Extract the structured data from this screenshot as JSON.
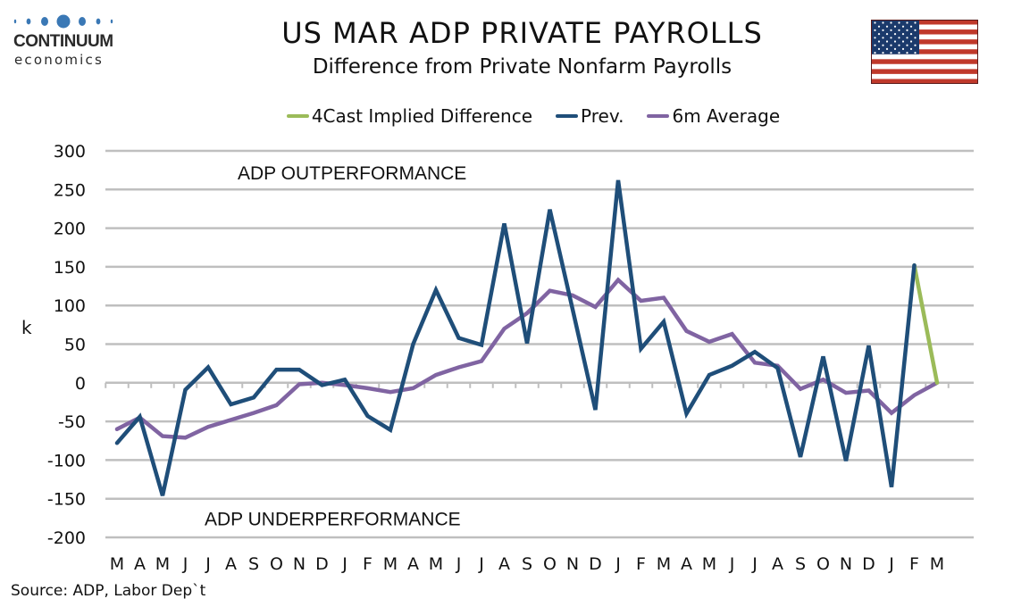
{
  "header": {
    "logo_name": "CONTINUUM",
    "logo_sub": "economics",
    "title": "US MAR ADP PRIVATE PAYROLLS",
    "subtitle": "Difference from Private Nonfarm Payrolls",
    "flag_icon": "us-flag-icon"
  },
  "colors": {
    "forecast": "#9bbb59",
    "prev": "#1f4e79",
    "avg": "#8064a2",
    "grid": "#bfbfbf",
    "logo_blue": "#3a78b5",
    "flag_red": "#c0392b",
    "flag_blue": "#1b3a6b"
  },
  "footer": {
    "source": "Source: ADP, Labor Dep`t"
  },
  "chart_data": {
    "type": "line",
    "title": "US MAR ADP PRIVATE PAYROLLS",
    "subtitle": "Difference from Private Nonfarm Payrolls",
    "xlabel": "",
    "ylabel": "k",
    "ylim": [
      -200,
      300
    ],
    "yticks": [
      300,
      250,
      200,
      150,
      100,
      50,
      0,
      -50,
      -100,
      -150,
      -200
    ],
    "grid": true,
    "legend_position": "top",
    "annotations": [
      {
        "text": "ADP OUTPERFORMANCE",
        "x_index": 10,
        "y": 272
      },
      {
        "text": "ADP UNDERPERFORMANCE",
        "x_index": 10,
        "y": -175
      }
    ],
    "categories": [
      "M",
      "A",
      "M",
      "J",
      "J",
      "A",
      "S",
      "O",
      "N",
      "D",
      "J",
      "F",
      "M",
      "A",
      "M",
      "J",
      "J",
      "A",
      "S",
      "O",
      "N",
      "D",
      "J",
      "F",
      "M",
      "A",
      "M",
      "J",
      "J",
      "A",
      "S",
      "O",
      "N",
      "D",
      "J",
      "F",
      "M"
    ],
    "series": [
      {
        "name": "4Cast Implied Difference",
        "color_key": "forecast",
        "values": [
          null,
          null,
          null,
          null,
          null,
          null,
          null,
          null,
          null,
          null,
          null,
          null,
          null,
          null,
          null,
          null,
          null,
          null,
          null,
          null,
          null,
          null,
          null,
          null,
          null,
          null,
          null,
          null,
          null,
          null,
          null,
          null,
          null,
          null,
          null,
          152,
          0
        ]
      },
      {
        "name": "Prev.",
        "color_key": "prev",
        "values": [
          -78,
          -44,
          -146,
          -9,
          20,
          -28,
          -19,
          17,
          17,
          -3,
          4,
          -43,
          -61,
          50,
          120,
          58,
          49,
          206,
          51,
          224,
          95,
          -35,
          262,
          44,
          79,
          -40,
          10,
          22,
          40,
          19,
          -96,
          34,
          -101,
          48,
          -135,
          152,
          null
        ]
      },
      {
        "name": "6m Average",
        "color_key": "avg",
        "values": [
          -60,
          -45,
          -69,
          -71,
          -57,
          -48,
          -39,
          -29,
          -2,
          0,
          -3,
          -7,
          -12,
          -7,
          10,
          20,
          28,
          70,
          90,
          119,
          113,
          98,
          133,
          106,
          110,
          67,
          53,
          63,
          26,
          22,
          -8,
          4,
          -13,
          -10,
          -39,
          -16,
          0
        ]
      }
    ]
  }
}
